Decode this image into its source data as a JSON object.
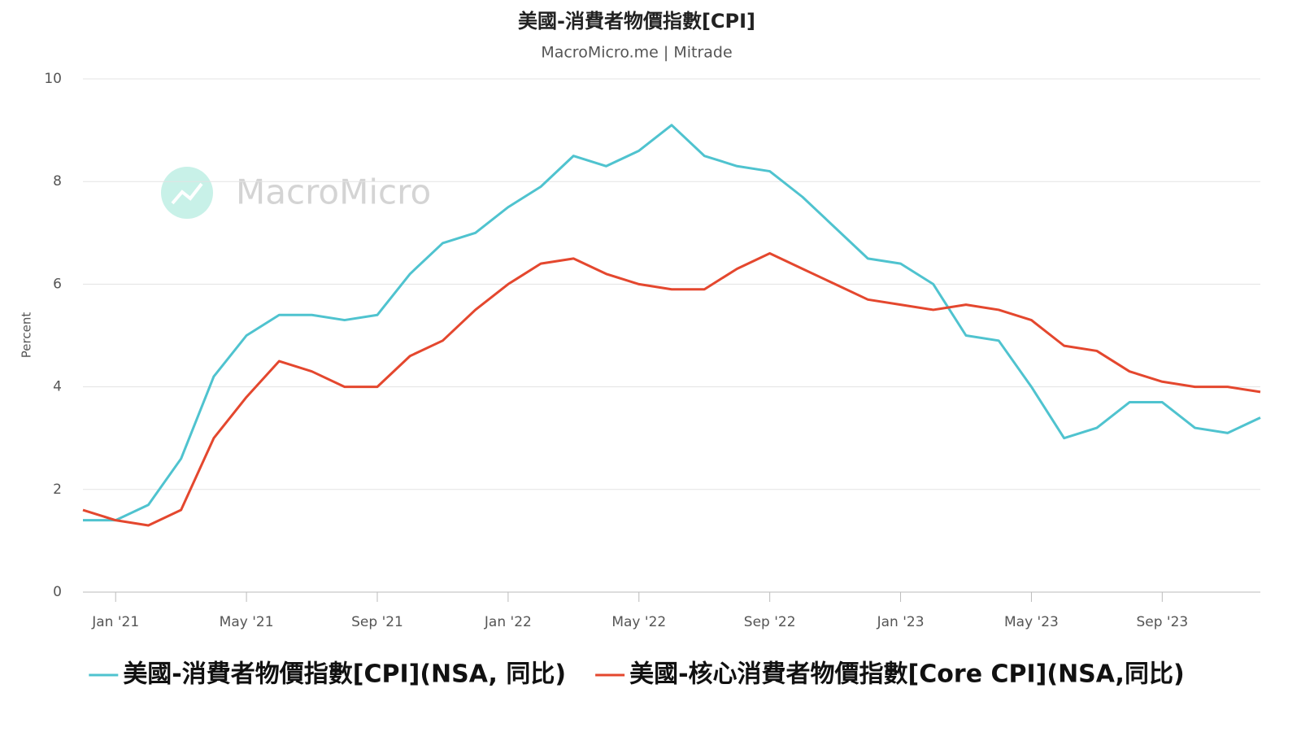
{
  "chart_data": {
    "type": "line",
    "title": "美國-消費者物價指數[CPI]",
    "subtitle": "MacroMicro.me | Mitrade",
    "watermark": "MacroMicro",
    "y_label": "Percent",
    "categories": [
      null,
      "Jan '21",
      null,
      null,
      null,
      "May '21",
      null,
      null,
      null,
      "Sep '21",
      null,
      null,
      null,
      "Jan '22",
      null,
      null,
      null,
      "May '22",
      null,
      null,
      null,
      "Sep '22",
      null,
      null,
      null,
      "Jan '23",
      null,
      null,
      null,
      "May '23",
      null,
      null,
      null,
      "Sep '23",
      null,
      null,
      null
    ],
    "series": [
      {
        "name": "美國-消費者物價指數[CPI](NSA, 同比)",
        "color": "#4fc3cf",
        "values": [
          1.4,
          1.4,
          1.7,
          2.6,
          4.2,
          5.0,
          5.4,
          5.4,
          5.3,
          5.4,
          6.2,
          6.8,
          7.0,
          7.5,
          7.9,
          8.5,
          8.3,
          8.6,
          9.1,
          8.5,
          8.3,
          8.2,
          7.7,
          7.1,
          6.5,
          6.4,
          6.0,
          5.0,
          4.9,
          4.0,
          3.0,
          3.2,
          3.7,
          3.7,
          3.2,
          3.1,
          3.4
        ]
      },
      {
        "name": "美國-核心消費者物價指數[Core CPI](NSA,同比)",
        "color": "#e4472e",
        "values": [
          1.6,
          1.4,
          1.3,
          1.6,
          3.0,
          3.8,
          4.5,
          4.3,
          4.0,
          4.0,
          4.6,
          4.9,
          5.5,
          6.0,
          6.4,
          6.5,
          6.2,
          6.0,
          5.9,
          5.9,
          6.3,
          6.6,
          6.3,
          6.0,
          5.7,
          5.6,
          5.5,
          5.6,
          5.5,
          5.3,
          4.8,
          4.7,
          4.3,
          4.1,
          4.0,
          4.0,
          3.9
        ]
      }
    ],
    "ylim": [
      0,
      10
    ],
    "yticks": [
      0,
      2,
      4,
      6,
      8,
      10
    ],
    "grid": true,
    "legend": "bottom"
  }
}
